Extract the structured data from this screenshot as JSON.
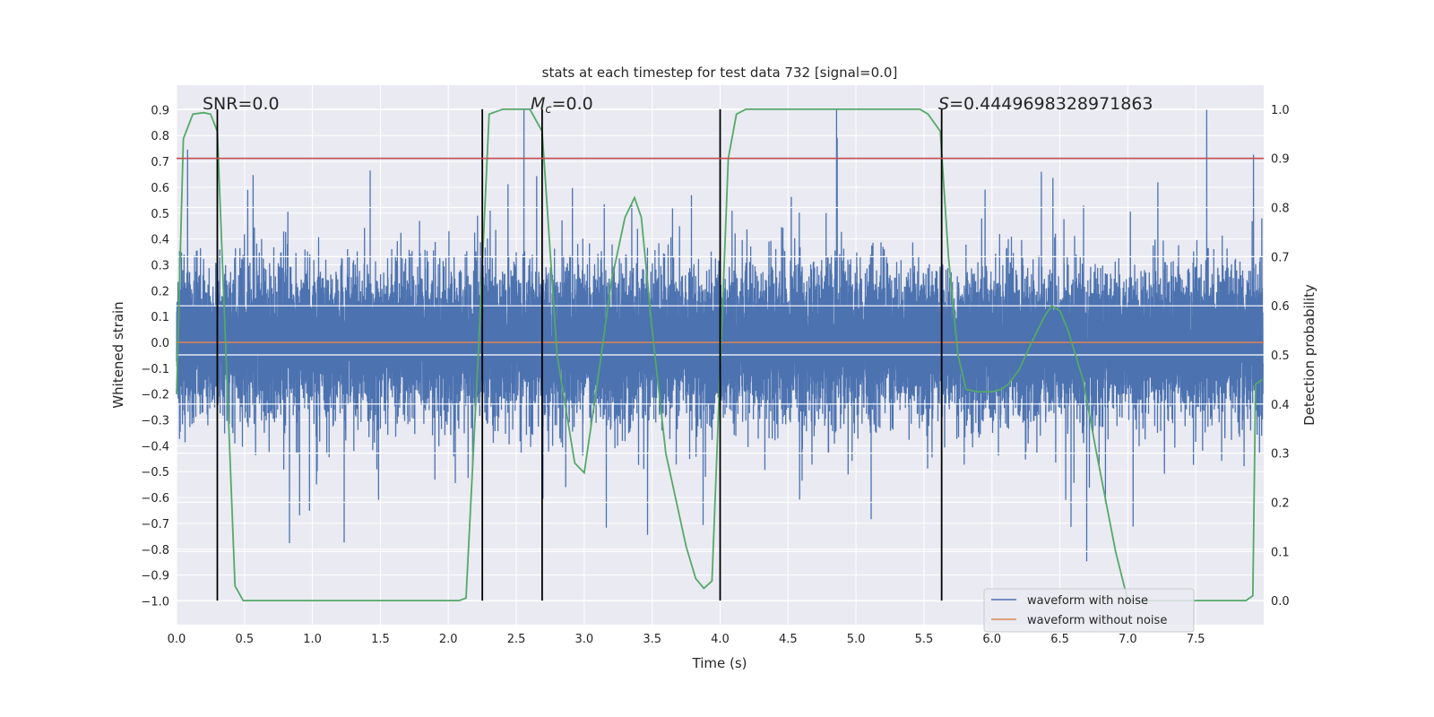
{
  "chart_data": {
    "type": "line",
    "title": "stats at each timestep for test data 732 [signal=0.0]",
    "xlabel": "Time (s)",
    "ylabel": "Whitened strain",
    "y2label": "Detection probability",
    "xlim": [
      0,
      8.0
    ],
    "ylim": [
      -1.092,
      0.995
    ],
    "y2lim": [
      -0.049,
      1.049
    ],
    "xticks": [
      "0.0",
      "0.5",
      "1.0",
      "1.5",
      "2.0",
      "2.5",
      "3.0",
      "3.5",
      "4.0",
      "4.5",
      "5.0",
      "5.5",
      "6.0",
      "6.5",
      "7.0",
      "7.5"
    ],
    "yticks": [
      "−1.0",
      "−0.9",
      "−0.8",
      "−0.7",
      "−0.6",
      "−0.5",
      "−0.4",
      "−0.3",
      "−0.2",
      "−0.1",
      "0.0",
      "0.1",
      "0.2",
      "0.3",
      "0.4",
      "0.5",
      "0.6",
      "0.7",
      "0.8",
      "0.9"
    ],
    "y2ticks": [
      "0.0",
      "0.1",
      "0.2",
      "0.3",
      "0.4",
      "0.5",
      "0.6",
      "0.7",
      "0.8",
      "0.9",
      "1.0"
    ],
    "grid": true,
    "legend_placement": "lower-right",
    "annotations": {
      "snr": "SNR=0.0",
      "mc_sym": "M",
      "mc_sub": "c",
      "mc_val": "=0.0",
      "s_sym": "S",
      "s_val": "=0.4449698328971863"
    },
    "series": [
      {
        "name": "waveform with noise",
        "axis": "left",
        "color": "#4c72b0",
        "kind": "noise",
        "duration_s": 8.0,
        "sample_rate": 2048,
        "approx_std": 0.14,
        "min": -1.0,
        "max": 0.9
      },
      {
        "name": "waveform without noise",
        "axis": "left",
        "color": "#dd8452",
        "kind": "constant",
        "value": 0.0
      },
      {
        "name": "detection probability",
        "axis": "right",
        "color": "#55a868",
        "x": [
          0,
          0.05,
          0.12,
          0.2,
          0.25,
          0.3,
          0.43,
          0.49,
          2.08,
          2.13,
          2.22,
          2.3,
          2.4,
          2.6,
          2.69,
          2.8,
          2.93,
          3.0,
          3.1,
          3.2,
          3.3,
          3.37,
          3.42,
          3.5,
          3.6,
          3.75,
          3.82,
          3.88,
          3.94,
          4.06,
          4.12,
          4.19,
          5.47,
          5.53,
          5.62,
          5.68,
          5.75,
          5.81,
          5.89,
          6.0,
          6.07,
          6.12,
          6.2,
          6.3,
          6.39,
          6.44,
          6.5,
          6.56,
          6.67,
          6.77,
          6.91,
          7.0,
          7.87,
          7.92,
          7.94,
          7.99
        ],
        "values": [
          0.42,
          0.94,
          0.99,
          0.993,
          0.99,
          0.955,
          0.03,
          0.0,
          0.0,
          0.005,
          0.5,
          0.99,
          1.0,
          1.0,
          0.955,
          0.5,
          0.28,
          0.26,
          0.45,
          0.65,
          0.78,
          0.82,
          0.78,
          0.55,
          0.3,
          0.11,
          0.045,
          0.025,
          0.04,
          0.9,
          0.99,
          1.0,
          1.0,
          0.99,
          0.955,
          0.7,
          0.5,
          0.43,
          0.425,
          0.425,
          0.43,
          0.44,
          0.47,
          0.53,
          0.58,
          0.6,
          0.59,
          0.55,
          0.45,
          0.3,
          0.1,
          0.0,
          0.0,
          0.01,
          0.44,
          0.45
        ]
      },
      {
        "name": "threshold",
        "axis": "right",
        "color": "#c44e52",
        "kind": "hline",
        "value": 0.9
      },
      {
        "name": "markers",
        "axis": "right",
        "color": "#000000",
        "kind": "vlines",
        "x": [
          0.3,
          2.25,
          2.69,
          4.0,
          5.63
        ],
        "range": [
          0,
          1
        ]
      }
    ],
    "legend": [
      "waveform with noise",
      "waveform without noise"
    ]
  }
}
